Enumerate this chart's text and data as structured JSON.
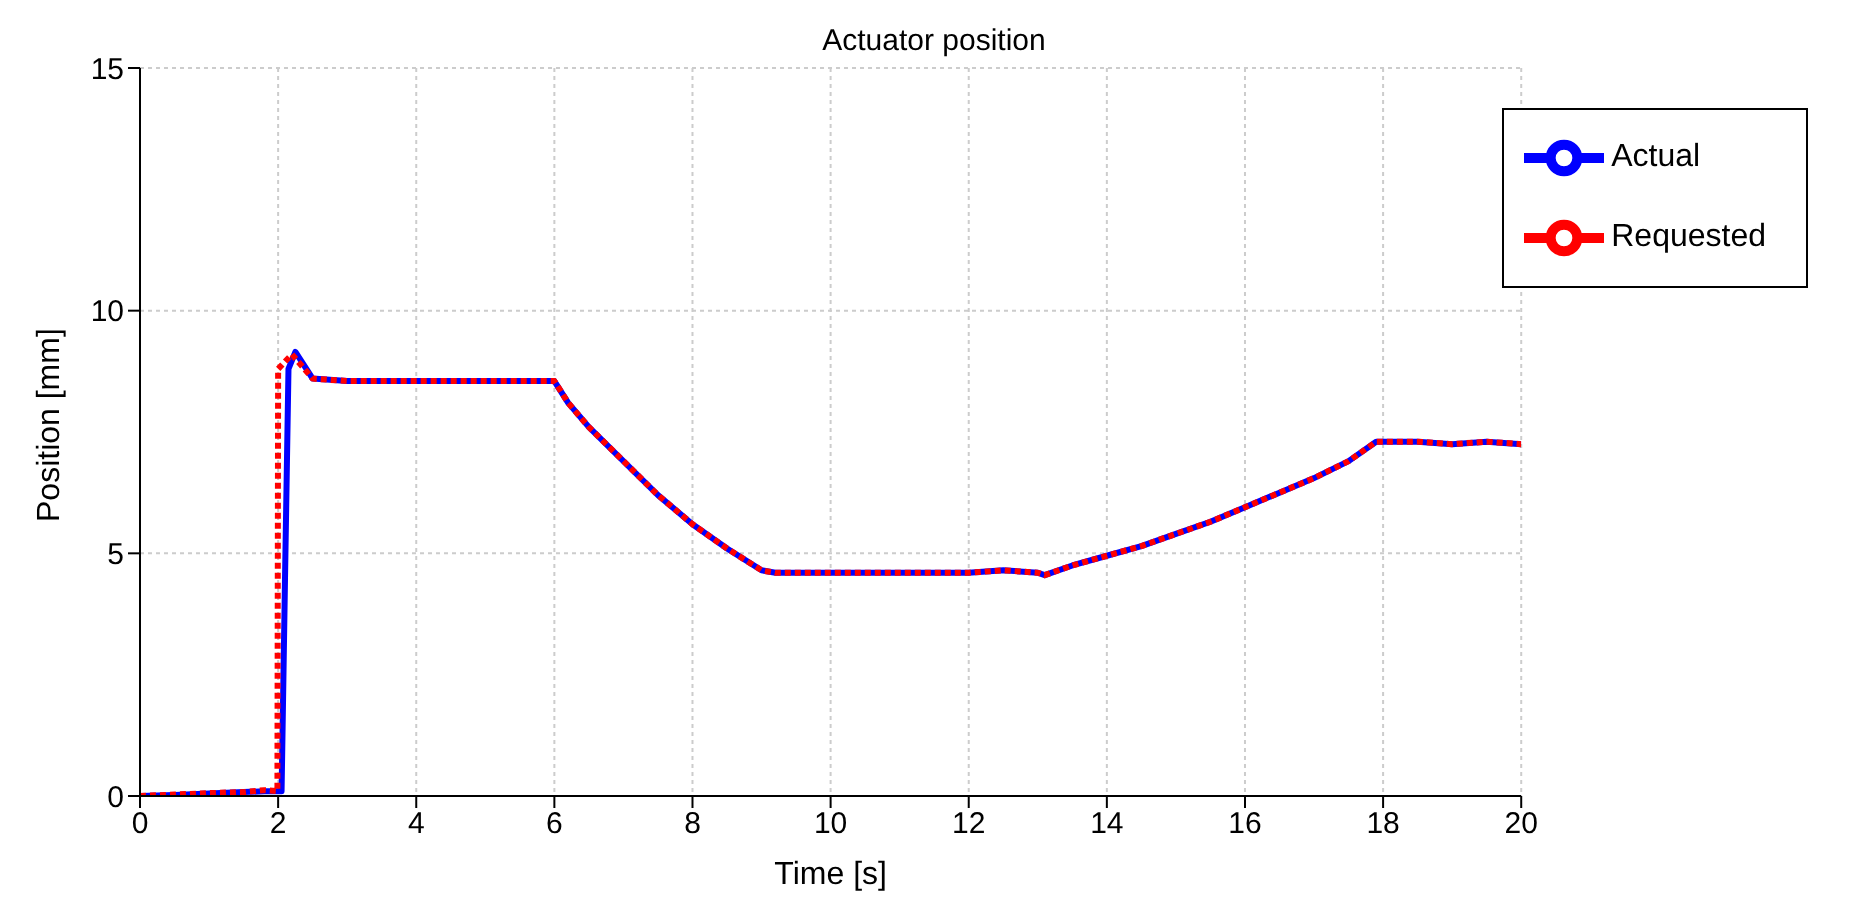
{
  "chart_data": {
    "type": "line",
    "title": "Actuator position",
    "xlabel": "Time [s]",
    "ylabel": "Position [mm]",
    "xlim": [
      0,
      20
    ],
    "xticks": [
      0,
      2,
      4,
      6,
      8,
      10,
      12,
      14,
      16,
      18,
      20
    ],
    "ylim": [
      0,
      15
    ],
    "yticks": [
      0,
      5,
      10,
      15
    ],
    "grid": true,
    "legend": "top right",
    "marker": "none",
    "series": [
      {
        "name": "Actual",
        "color": "#0000ff",
        "line_style": "solid",
        "x": [
          0,
          0.5,
          1,
          1.5,
          1.8,
          2.05,
          2.1,
          2.15,
          2.25,
          2.5,
          3,
          4,
          5,
          5.5,
          6,
          6.2,
          6.5,
          7,
          7.5,
          8,
          8.5,
          9,
          9.2,
          10,
          11,
          12,
          12.5,
          13,
          13.1,
          13.5,
          14,
          14.5,
          15,
          15.5,
          16,
          16.5,
          17,
          17.5,
          17.9,
          18.5,
          19,
          19.5,
          20
        ],
        "values": [
          0,
          0.02,
          0.05,
          0.08,
          0.1,
          0.1,
          4.5,
          8.8,
          9.15,
          8.6,
          8.55,
          8.55,
          8.55,
          8.55,
          8.55,
          8.1,
          7.6,
          6.9,
          6.2,
          5.6,
          5.1,
          4.65,
          4.6,
          4.6,
          4.6,
          4.6,
          4.65,
          4.6,
          4.55,
          4.75,
          4.95,
          5.15,
          5.4,
          5.65,
          5.95,
          6.25,
          6.55,
          6.9,
          7.3,
          7.3,
          7.25,
          7.3,
          7.25
        ]
      },
      {
        "name": "Requested",
        "color": "#ff0000",
        "line_style": "dotted",
        "x": [
          0,
          0.5,
          1,
          1.5,
          1.8,
          1.99,
          2.0,
          2.2,
          2.5,
          3,
          4,
          5,
          5.5,
          6,
          6.2,
          6.5,
          7,
          7.5,
          8,
          8.5,
          9,
          9.2,
          10,
          11,
          12,
          12.5,
          13,
          13.1,
          13.5,
          14,
          14.5,
          15,
          15.5,
          16,
          16.5,
          17,
          17.5,
          17.9,
          18.5,
          19,
          19.5,
          20
        ],
        "values": [
          0,
          0.03,
          0.06,
          0.08,
          0.12,
          0.1,
          8.8,
          9.1,
          8.6,
          8.55,
          8.55,
          8.55,
          8.55,
          8.55,
          8.1,
          7.6,
          6.9,
          6.2,
          5.6,
          5.1,
          4.65,
          4.6,
          4.6,
          4.6,
          4.6,
          4.65,
          4.6,
          4.55,
          4.75,
          4.95,
          5.15,
          5.4,
          5.65,
          5.95,
          6.25,
          6.55,
          6.9,
          7.3,
          7.3,
          7.25,
          7.3,
          7.25
        ]
      }
    ]
  }
}
